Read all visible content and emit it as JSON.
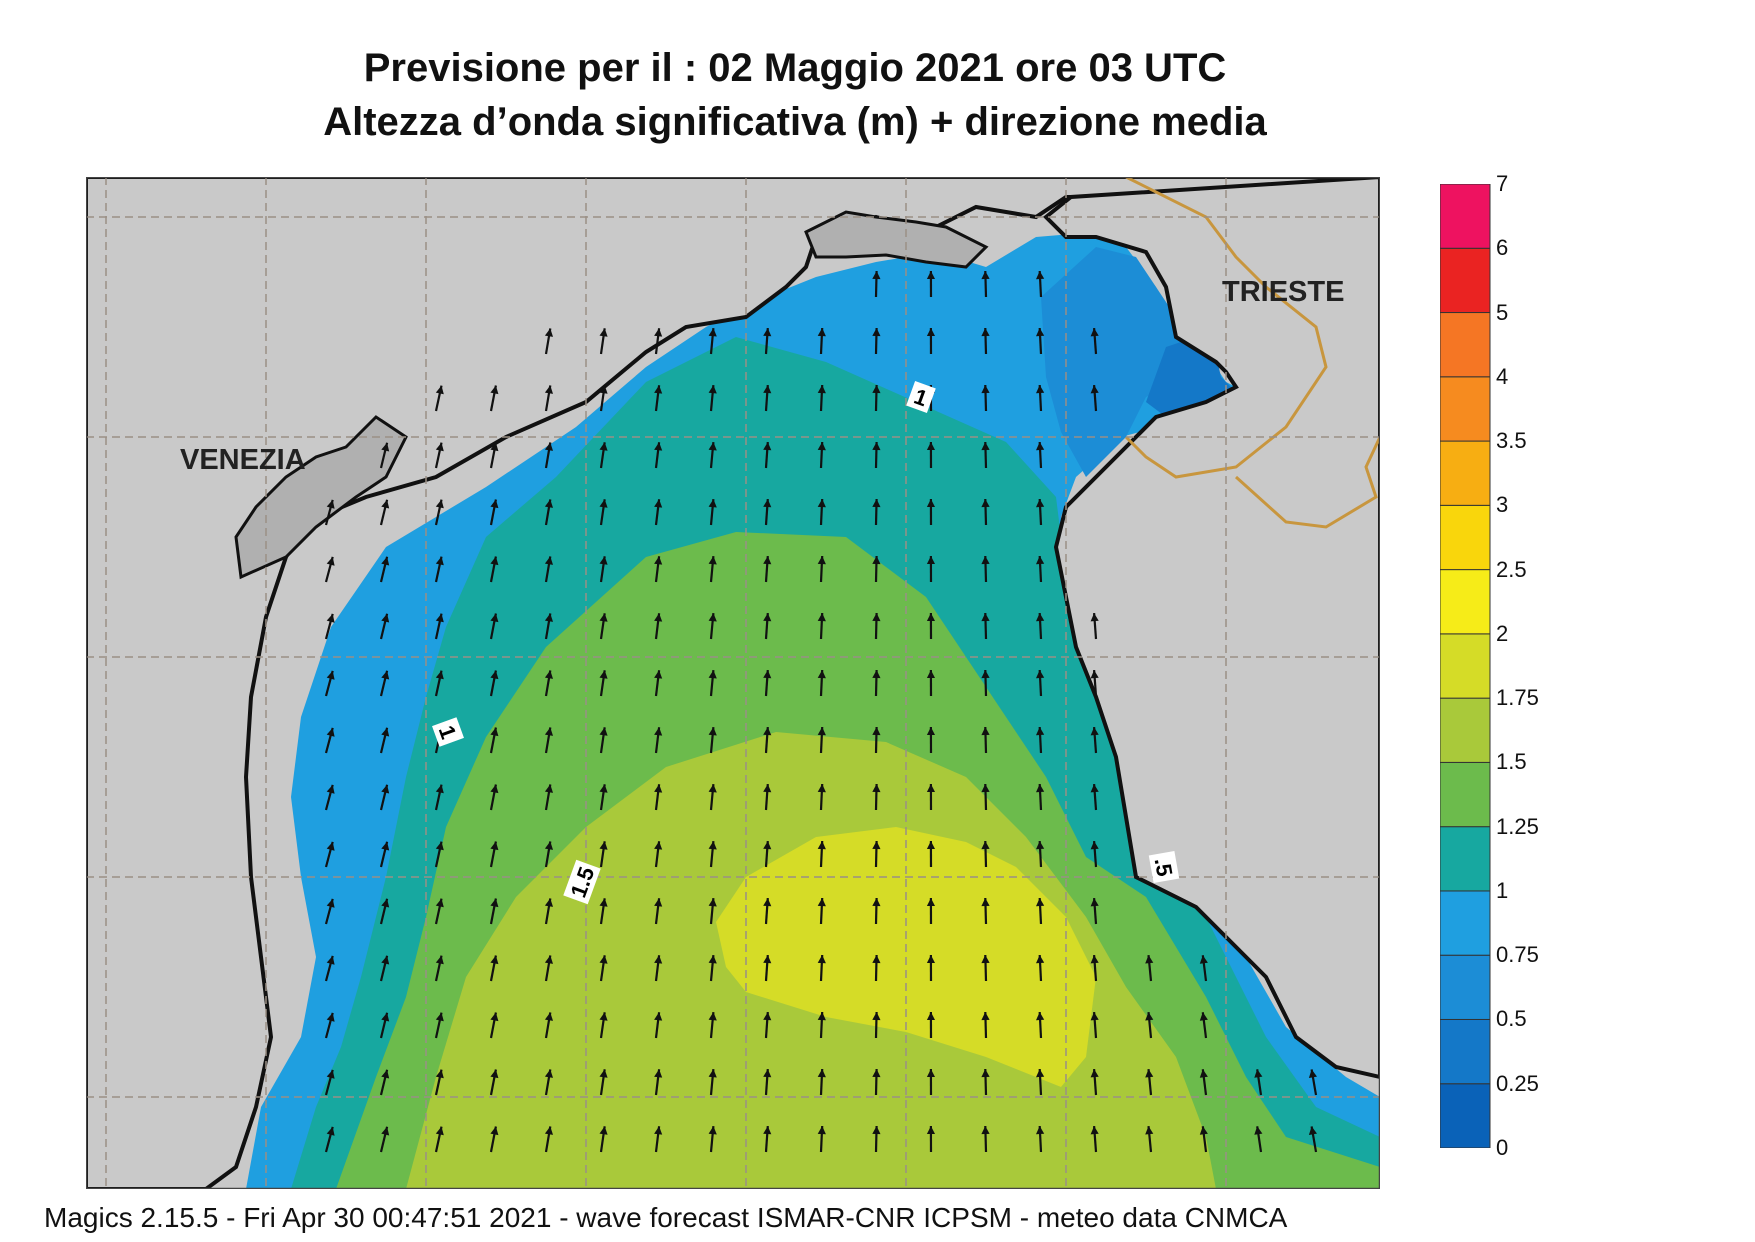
{
  "title": {
    "line1": "Previsione per il  :  02   Maggio  2021   ore 03 UTC",
    "line2": "Altezza d’onda significativa (m) + direzione media"
  },
  "map": {
    "cities": [
      {
        "name": "VENEZIA"
      },
      {
        "name": "TRIESTE"
      }
    ],
    "contour_labels": [
      "1",
      "1",
      "1.5",
      ".5"
    ],
    "wave_direction": "from south-southwest toward north-northeast",
    "colors": {
      "land": "#c9c9c9",
      "coast": "#111111",
      "border": "#c8963e",
      "grid": "#9a8f86"
    }
  },
  "legend": {
    "units": "m",
    "levels": [
      "0",
      "0.25",
      "0.5",
      "0.75",
      "1",
      "1.25",
      "1.5",
      "1.75",
      "2",
      "2.5",
      "3",
      "3.5",
      "4",
      "5",
      "6",
      "7"
    ],
    "colors": [
      "#0a62b8",
      "#1478c8",
      "#1c8dd6",
      "#1f9fe0",
      "#17a8a0",
      "#6cbb4c",
      "#a9c93a",
      "#d5dc27",
      "#f6ec18",
      "#f9d60c",
      "#f7ae12",
      "#f68b1f",
      "#f57624",
      "#ea2322",
      "#ee1260"
    ]
  },
  "footer": {
    "text": "Magics 2.15.5 - Fri Apr 30 00:47:51 2021 - wave forecast  ISMAR-CNR  ICPSM - meteo data   CNMCA"
  }
}
